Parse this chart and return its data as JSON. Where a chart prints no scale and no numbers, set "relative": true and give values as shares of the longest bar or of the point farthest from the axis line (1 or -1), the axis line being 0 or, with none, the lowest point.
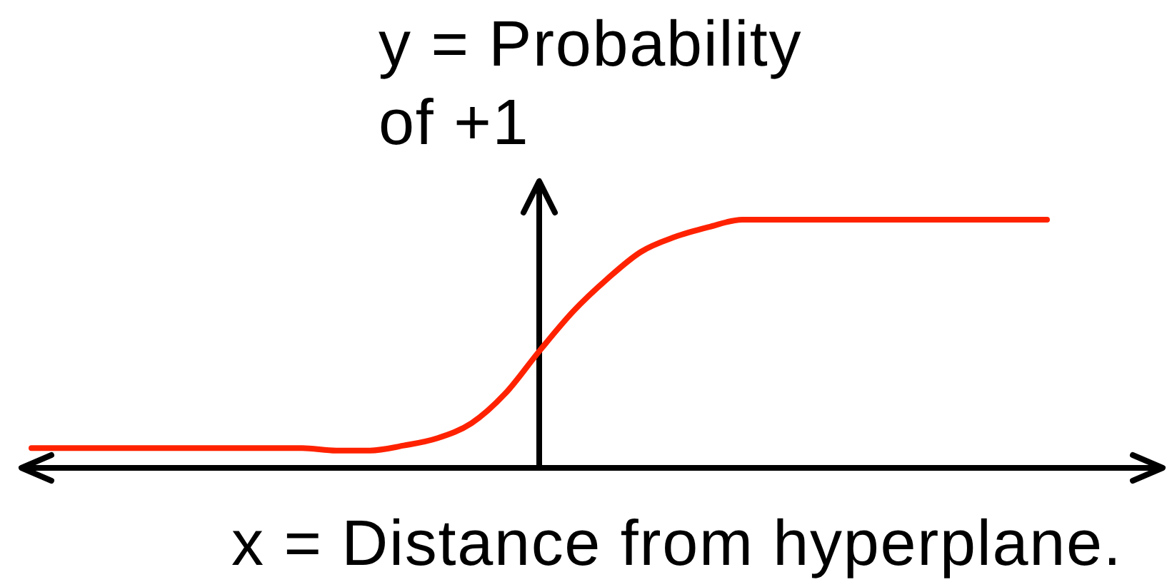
{
  "chart_data": {
    "type": "line",
    "xlabel": "x = Distance from hyperplane.",
    "ylabel": "y = Probability of +1",
    "relative": true,
    "categories": [
      null,
      null,
      null,
      null,
      null,
      null,
      null,
      null,
      null,
      null,
      null,
      null,
      null,
      null,
      null,
      null,
      null,
      null,
      null,
      null,
      null,
      null,
      null,
      null,
      null,
      null,
      null,
      null,
      null,
      null,
      null
    ],
    "series": [
      {
        "color": "#ff2200",
        "values": [
          0.08,
          0.08,
          0.08,
          0.08,
          0.08,
          0.08,
          0.08,
          0.08,
          0.08,
          0.07,
          0.07,
          0.09,
          0.12,
          0.18,
          0.3,
          0.47,
          0.63,
          0.76,
          0.87,
          0.93,
          0.97,
          1,
          1,
          1,
          1,
          1,
          1,
          1,
          1,
          1,
          1
        ]
      }
    ]
  }
}
